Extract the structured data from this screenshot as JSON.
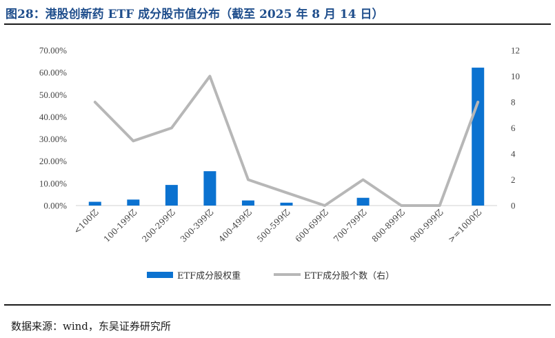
{
  "header": {
    "title": "图28：港股创新药 ETF 成分股市值分布（截至 2025 年 8 月 14 日）"
  },
  "footer": {
    "source": "数据来源：wind，东吴证券研究所"
  },
  "colors": {
    "bar": "#0b72d0",
    "line": "#b7b7b7",
    "title": "#1f4e8c"
  },
  "chart_data": {
    "type": "bar+line",
    "categories": [
      "<100亿",
      "100-199亿",
      "200-299亿",
      "300-399亿",
      "400-499亿",
      "500-599亿",
      "600-699亿",
      "700-799亿",
      "800-899亿",
      "900-999亿",
      ">=1000亿"
    ],
    "series": [
      {
        "name": "ETF成分股权重",
        "type": "bar",
        "axis": "left",
        "values": [
          0.017,
          0.027,
          0.093,
          0.155,
          0.023,
          0.013,
          0.0,
          0.035,
          0.0,
          0.0,
          0.622
        ]
      },
      {
        "name": "ETF成分股个数（右）",
        "type": "line",
        "axis": "right",
        "values": [
          8,
          5,
          6,
          10,
          2,
          1,
          0,
          2,
          0,
          0,
          8
        ]
      }
    ],
    "left_axis": {
      "ylim": [
        0,
        0.7
      ],
      "ticks": [
        "0.00%",
        "10.00%",
        "20.00%",
        "30.00%",
        "40.00%",
        "50.00%",
        "60.00%",
        "70.00%"
      ]
    },
    "right_axis": {
      "ylim": [
        0,
        12
      ],
      "ticks": [
        "0",
        "2",
        "4",
        "6",
        "8",
        "10",
        "12"
      ]
    },
    "grid": false,
    "legend_position": "bottom"
  }
}
